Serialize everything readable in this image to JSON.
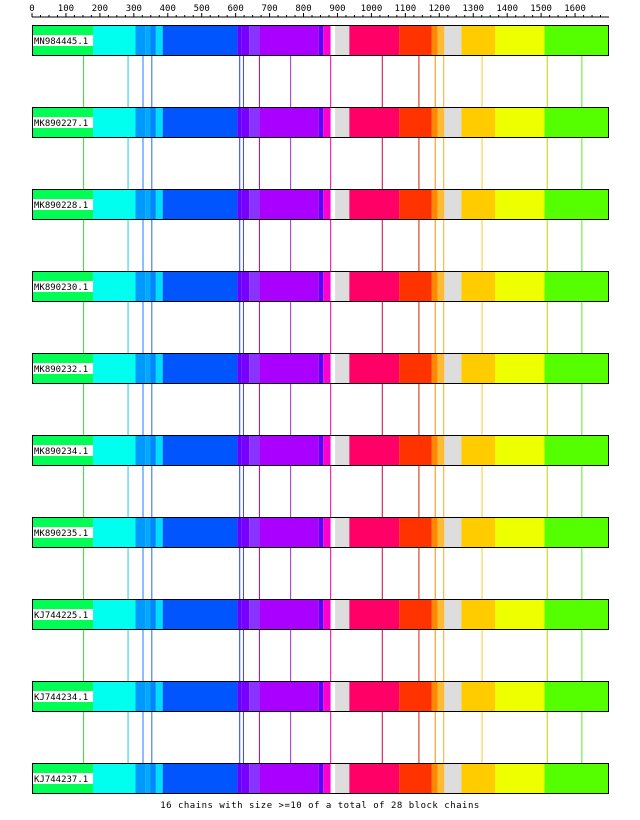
{
  "axis": {
    "min": 0,
    "max": 1700,
    "ticks": [
      0,
      100,
      200,
      300,
      400,
      500,
      600,
      700,
      800,
      900,
      1000,
      1100,
      1200,
      1300,
      1400,
      1500,
      1600
    ]
  },
  "blocks": [
    {
      "start": 0,
      "end": 180,
      "color": "#00ff55"
    },
    {
      "start": 180,
      "end": 305,
      "color": "#00ffee"
    },
    {
      "start": 305,
      "end": 335,
      "color": "#0099ff"
    },
    {
      "start": 335,
      "end": 348,
      "color": "#00aaff"
    },
    {
      "start": 348,
      "end": 365,
      "color": "#0088ff"
    },
    {
      "start": 365,
      "end": 385,
      "color": "#00ddff"
    },
    {
      "start": 385,
      "end": 605,
      "color": "#0055ff"
    },
    {
      "start": 605,
      "end": 618,
      "color": "#6600ff"
    },
    {
      "start": 618,
      "end": 640,
      "color": "#7700ff"
    },
    {
      "start": 640,
      "end": 670,
      "color": "#8833ff"
    },
    {
      "start": 670,
      "end": 845,
      "color": "#aa00ff"
    },
    {
      "start": 845,
      "end": 858,
      "color": "#5500ff"
    },
    {
      "start": 858,
      "end": 880,
      "color": "#ff00cc"
    },
    {
      "start": 880,
      "end": 893,
      "color": "#ffffff"
    },
    {
      "start": 893,
      "end": 935,
      "color": "#dddddd"
    },
    {
      "start": 935,
      "end": 1082,
      "color": "#ff0066"
    },
    {
      "start": 1082,
      "end": 1178,
      "color": "#ff3300"
    },
    {
      "start": 1178,
      "end": 1195,
      "color": "#ff8800"
    },
    {
      "start": 1195,
      "end": 1215,
      "color": "#ffbb33"
    },
    {
      "start": 1215,
      "end": 1265,
      "color": "#dddddd"
    },
    {
      "start": 1265,
      "end": 1365,
      "color": "#ffcc00"
    },
    {
      "start": 1365,
      "end": 1510,
      "color": "#eeff00"
    },
    {
      "start": 1510,
      "end": 1700,
      "color": "#55ff00"
    }
  ],
  "connectors": [
    {
      "pos": 152,
      "color": "#33dd33"
    },
    {
      "pos": 283,
      "color": "#22ccdd"
    },
    {
      "pos": 327,
      "color": "#2277ff"
    },
    {
      "pos": 353,
      "color": "#2266ee"
    },
    {
      "pos": 612,
      "color": "#2233ff"
    },
    {
      "pos": 623,
      "color": "#3344ff"
    },
    {
      "pos": 670,
      "color": "#8800ff"
    },
    {
      "pos": 762,
      "color": "#9933cc"
    },
    {
      "pos": 880,
      "color": "#ee00aa"
    },
    {
      "pos": 1032,
      "color": "#cc0044"
    },
    {
      "pos": 1140,
      "color": "#cc2200"
    },
    {
      "pos": 1188,
      "color": "#ff8800"
    },
    {
      "pos": 1213,
      "color": "#ffaa22"
    },
    {
      "pos": 1326,
      "color": "#ffcc33"
    },
    {
      "pos": 1518,
      "color": "#cccc00"
    },
    {
      "pos": 1620,
      "color": "#55ee22"
    }
  ],
  "sequences": [
    {
      "id": "MN984445.1"
    },
    {
      "id": "MK890227.1"
    },
    {
      "id": "MK890228.1"
    },
    {
      "id": "MK890230.1"
    },
    {
      "id": "MK890232.1"
    },
    {
      "id": "MK890234.1"
    },
    {
      "id": "MK890235.1"
    },
    {
      "id": "KJ744225.1"
    },
    {
      "id": "KJ744234.1"
    },
    {
      "id": "KJ744237.1"
    }
  ],
  "footer": "16 chains with size >=10 of a total of 28 block chains"
}
